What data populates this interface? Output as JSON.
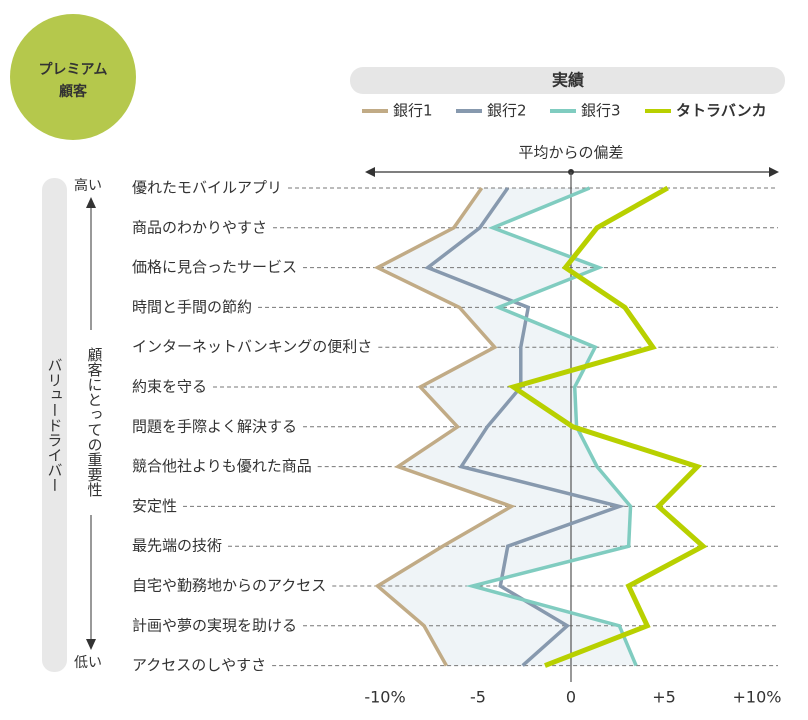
{
  "chart_data": {
    "type": "line",
    "badge": [
      "プレミアム",
      "顧客"
    ],
    "title": "実績",
    "x_label": "平均からの偏差",
    "y_label": "バリュードライバー",
    "importance_label": "顧客にとっての重要性",
    "importance_high": "高い",
    "importance_low": "低い",
    "categories": [
      "優れたモバイルアプリ",
      "商品のわかりやすさ",
      "価格に見合ったサービス",
      "時間と手間の節約",
      "インターネットバンキングの便利さ",
      "約束を守る",
      "問題を手際よく解決する",
      "競合他社よりも優れた商品",
      "安定性",
      "最先端の技術",
      "自宅や勤務地からのアクセス",
      "計画や夢の実現を助ける",
      "アクセスのしやすさ"
    ],
    "series": [
      {
        "name": "銀行1",
        "color": "#c1ab86",
        "values": [
          -4.8,
          -6.3,
          -10.4,
          -6.0,
          -4.1,
          -8.1,
          -6.1,
          -9.3,
          -3.2,
          -6.9,
          -10.4,
          -7.9,
          -6.7
        ]
      },
      {
        "name": "銀行2",
        "color": "#8799ae",
        "values": [
          -3.4,
          -4.9,
          -7.7,
          -2.3,
          -2.7,
          -2.7,
          -4.5,
          -5.9,
          2.6,
          -3.4,
          -3.8,
          -0.2,
          -2.6
        ]
      },
      {
        "name": "銀行3",
        "color": "#80ccc0",
        "values": [
          1.0,
          -4.2,
          1.5,
          -3.9,
          1.3,
          0.2,
          0.3,
          1.4,
          3.2,
          3.1,
          -5.3,
          2.6,
          3.5
        ]
      },
      {
        "name": "タトラバンカ",
        "color": "#b8d000",
        "values": [
          5.2,
          1.4,
          -0.3,
          2.9,
          4.4,
          -3.1,
          0.1,
          6.8,
          4.7,
          7.1,
          3.1,
          4.1,
          -1.4
        ]
      }
    ],
    "xlim": [
      -10,
      10
    ],
    "xticks": [
      {
        "value": -10,
        "label": "-10%"
      },
      -5,
      0,
      {
        "value": 5,
        "label": "+5"
      },
      {
        "value": 10,
        "label": "+10%"
      }
    ]
  }
}
